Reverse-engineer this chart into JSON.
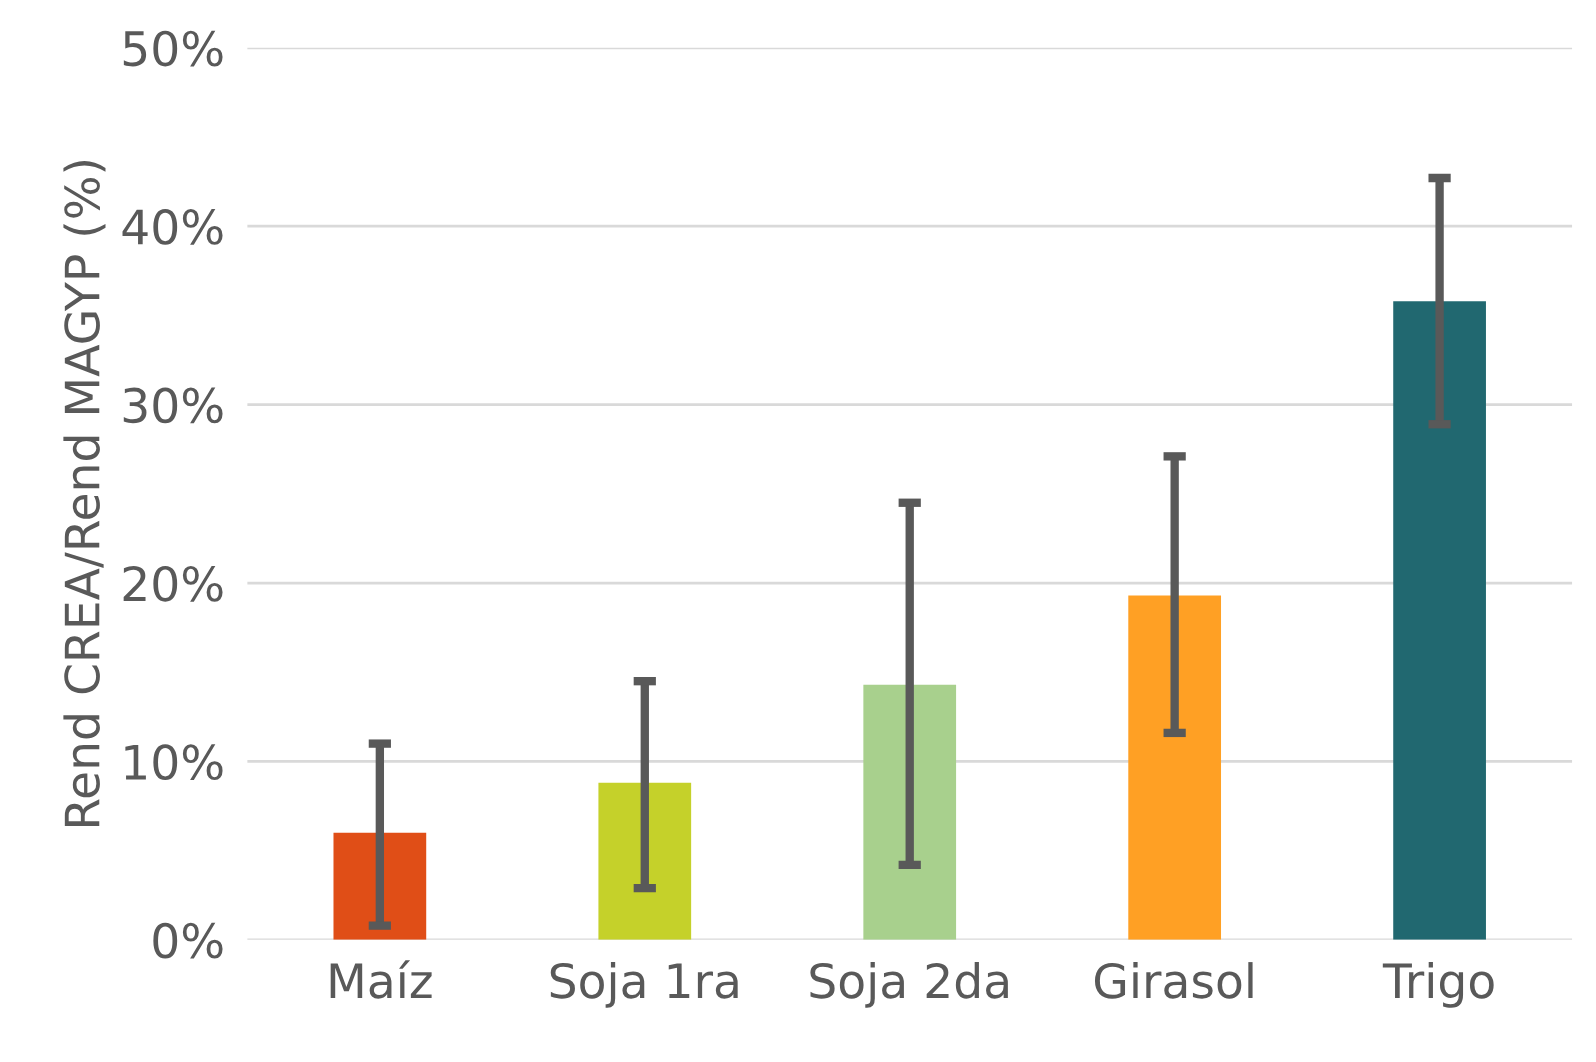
{
  "chart_data": {
    "type": "bar",
    "ylabel": "Rend CREA/Rend MAGYP (%)",
    "categories": [
      "Maíz",
      "Soja 1ra",
      "Soja 2da",
      "Girasol",
      "Trigo"
    ],
    "values": [
      6.0,
      8.8,
      14.3,
      19.3,
      35.8
    ],
    "colors": [
      "#e04e17",
      "#c5d12a",
      "#a8d08d",
      "#ffa024",
      "#216870"
    ],
    "errors": [
      [
        0.8,
        11.0
      ],
      [
        2.9,
        14.5
      ],
      [
        4.2,
        24.5
      ],
      [
        11.6,
        27.1
      ],
      [
        28.9,
        42.7
      ]
    ],
    "ylim": [
      0,
      50
    ],
    "yticks": [
      {
        "value": 0,
        "label": "0%"
      },
      {
        "value": 10,
        "label": "10%"
      },
      {
        "value": 20,
        "label": "20%"
      },
      {
        "value": 30,
        "label": "30%"
      },
      {
        "value": 40,
        "label": "40%"
      },
      {
        "value": 50,
        "label": "50%"
      }
    ],
    "grid": "y"
  }
}
